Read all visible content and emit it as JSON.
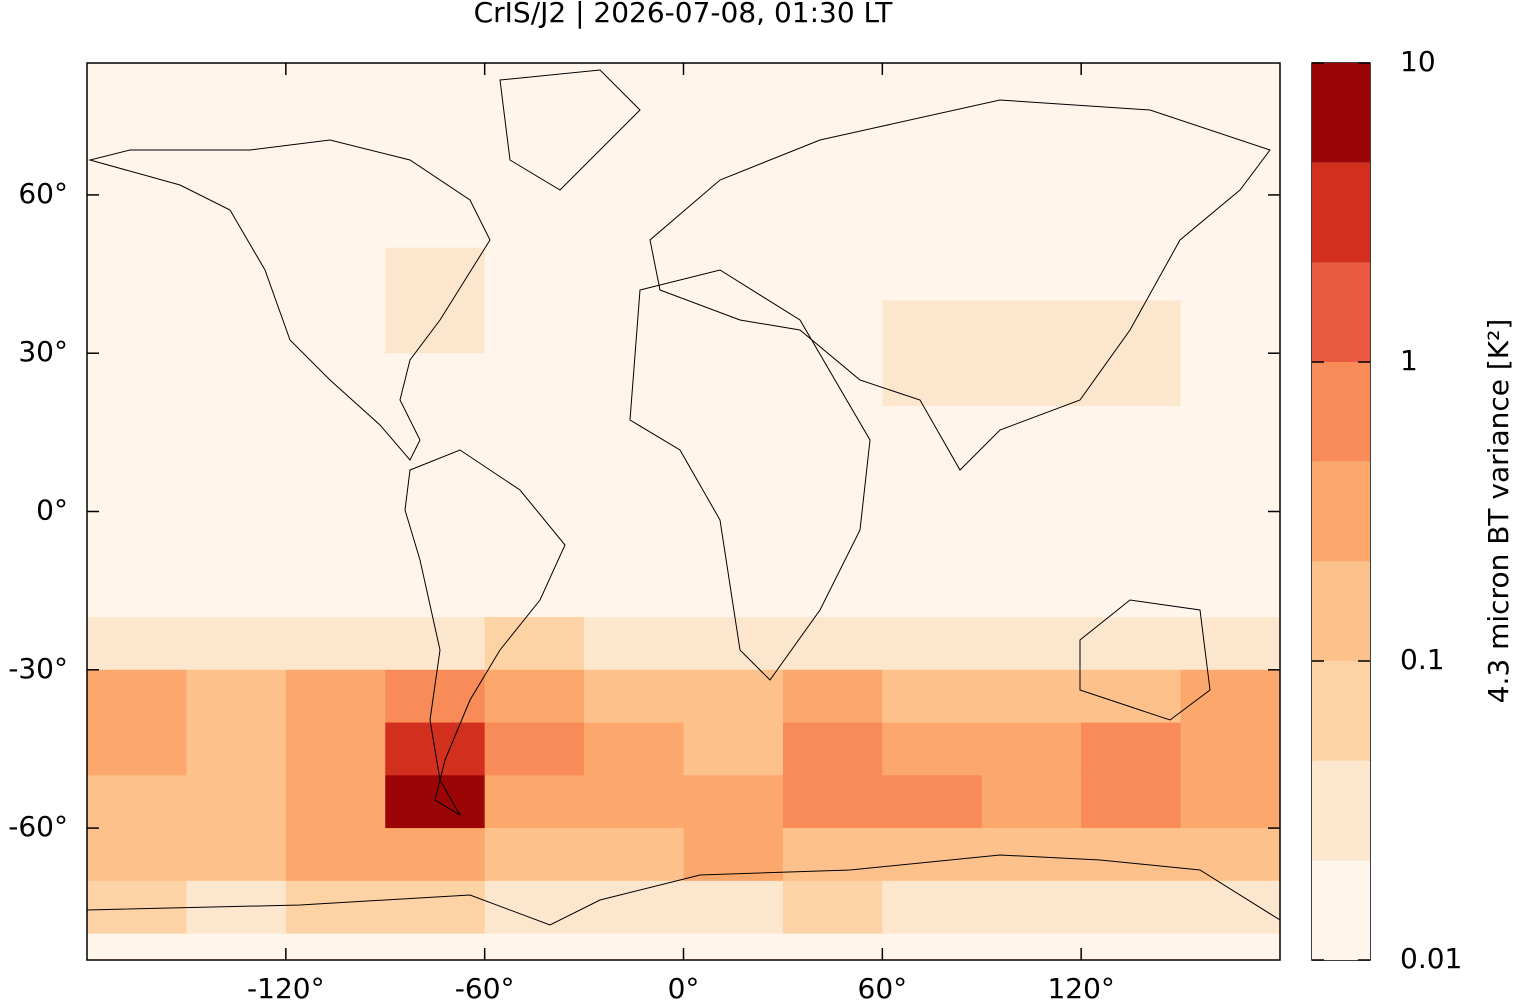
{
  "chart_data": {
    "type": "map",
    "title": "CrIS/J2 | 2026-07-08, 01:30 LT",
    "colorbar_label": "4.3 micron BT variance [K²]",
    "xlim": [
      -180,
      180
    ],
    "ylim": [
      -85,
      85
    ],
    "xticks": [
      {
        "value": -120,
        "label": "-120°"
      },
      {
        "value": -60,
        "label": "-60°"
      },
      {
        "value": 0,
        "label": "0°"
      },
      {
        "value": 60,
        "label": "60°"
      },
      {
        "value": 120,
        "label": "120°"
      }
    ],
    "yticks": [
      {
        "value": 60,
        "label": "60°"
      },
      {
        "value": 30,
        "label": "30°"
      },
      {
        "value": 0,
        "label": "0°"
      },
      {
        "value": -30,
        "label": "-30°"
      },
      {
        "value": -60,
        "label": "-60°"
      }
    ],
    "clim": [
      0.01,
      10
    ],
    "log_scale": true,
    "cticks": [
      0.01,
      0.1,
      1,
      10
    ],
    "levels": [
      0.01,
      0.0215,
      0.0464,
      0.1,
      0.215,
      0.464,
      1,
      2.15,
      4.64,
      10
    ],
    "colors": [
      "#fff5eb",
      "#fde6ce",
      "#fdd2a5",
      "#fdc28c",
      "#fca86c",
      "#f88b58",
      "#e9593f",
      "#d32f1f",
      "#9b0505"
    ],
    "lon_edges": [
      -180,
      -150,
      -120,
      -90,
      -60,
      -30,
      0,
      30,
      60,
      90,
      120,
      150,
      180
    ],
    "lat_edges": [
      90,
      80,
      70,
      60,
      50,
      40,
      30,
      20,
      10,
      0,
      -10,
      -20,
      -30,
      -40,
      -50,
      -60,
      -70,
      -80,
      -90
    ],
    "values": [
      [
        0.012,
        0.012,
        0.012,
        0.012,
        0.012,
        0.012,
        0.012,
        0.012,
        0.012,
        0.012,
        0.012,
        0.012
      ],
      [
        0.012,
        0.012,
        0.012,
        0.012,
        0.012,
        0.012,
        0.012,
        0.012,
        0.012,
        0.012,
        0.012,
        0.012
      ],
      [
        0.012,
        0.012,
        0.012,
        0.012,
        0.012,
        0.012,
        0.012,
        0.012,
        0.012,
        0.012,
        0.012,
        0.012
      ],
      [
        0.015,
        0.015,
        0.015,
        0.015,
        0.015,
        0.015,
        0.015,
        0.015,
        0.015,
        0.015,
        0.015,
        0.015
      ],
      [
        0.012,
        0.015,
        0.018,
        0.03,
        0.015,
        0.012,
        0.012,
        0.015,
        0.02,
        0.02,
        0.015,
        0.012
      ],
      [
        0.012,
        0.015,
        0.02,
        0.03,
        0.015,
        0.012,
        0.012,
        0.015,
        0.025,
        0.03,
        0.025,
        0.015
      ],
      [
        0.012,
        0.012,
        0.015,
        0.02,
        0.015,
        0.012,
        0.015,
        0.02,
        0.025,
        0.03,
        0.03,
        0.015
      ],
      [
        0.015,
        0.015,
        0.015,
        0.015,
        0.015,
        0.015,
        0.015,
        0.015,
        0.015,
        0.015,
        0.015,
        0.015
      ],
      [
        0.015,
        0.015,
        0.015,
        0.015,
        0.015,
        0.015,
        0.015,
        0.015,
        0.015,
        0.015,
        0.015,
        0.015
      ],
      [
        0.015,
        0.015,
        0.015,
        0.015,
        0.015,
        0.015,
        0.015,
        0.015,
        0.015,
        0.015,
        0.015,
        0.015
      ],
      [
        0.018,
        0.018,
        0.018,
        0.018,
        0.018,
        0.018,
        0.018,
        0.018,
        0.018,
        0.018,
        0.018,
        0.018
      ],
      [
        0.03,
        0.04,
        0.03,
        0.03,
        0.05,
        0.03,
        0.025,
        0.03,
        0.03,
        0.03,
        0.03,
        0.04
      ],
      [
        0.3,
        0.15,
        0.25,
        0.8,
        0.3,
        0.15,
        0.1,
        0.25,
        0.15,
        0.15,
        0.15,
        0.4
      ],
      [
        0.25,
        0.2,
        0.25,
        3,
        0.6,
        0.25,
        0.2,
        0.6,
        0.35,
        0.3,
        0.7,
        0.3
      ],
      [
        0.2,
        0.2,
        0.3,
        5,
        0.4,
        0.35,
        0.3,
        0.5,
        0.6,
        0.4,
        0.9,
        0.3
      ],
      [
        0.15,
        0.2,
        0.25,
        0.3,
        0.15,
        0.2,
        0.3,
        0.2,
        0.2,
        0.15,
        0.2,
        0.15
      ],
      [
        0.05,
        0.04,
        0.05,
        0.05,
        0.04,
        0.03,
        0.04,
        0.05,
        0.04,
        0.03,
        0.04,
        0.04
      ],
      [
        0.02,
        0.02,
        0.02,
        0.02,
        0.02,
        0.02,
        0.02,
        0.02,
        0.02,
        0.02,
        0.02,
        0.02
      ]
    ]
  }
}
